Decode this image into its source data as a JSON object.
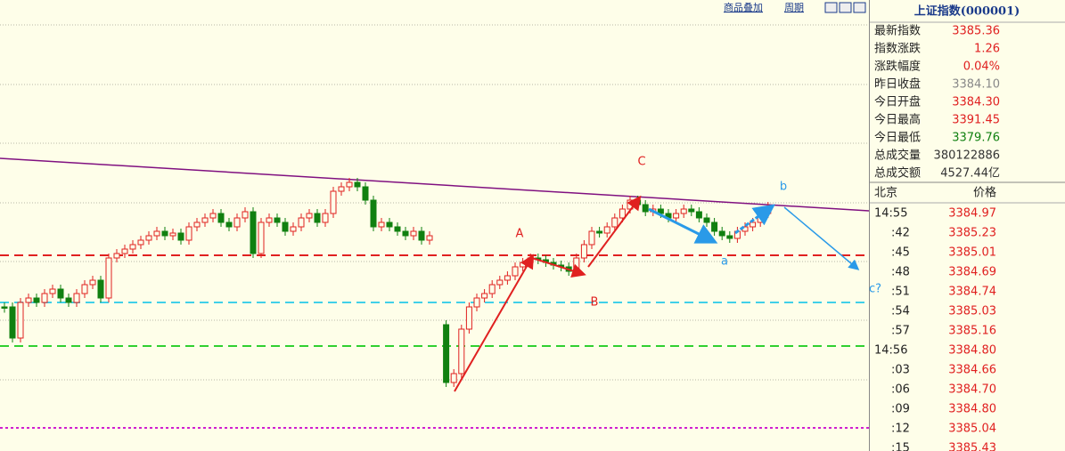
{
  "toolbar": {
    "overlay": "商品叠加",
    "period": "周期"
  },
  "chart": {
    "labels": {
      "A": "A",
      "B": "B",
      "C": "C",
      "a": "a",
      "b": "b",
      "c": "c?"
    }
  },
  "quote": {
    "title": "上证指数(000001)",
    "rows": [
      [
        "最新指数",
        "3385.36"
      ],
      [
        "指数涨跌",
        "1.26"
      ],
      [
        "涨跌幅度",
        "0.04%"
      ],
      [
        "昨日收盘",
        "3384.10"
      ],
      [
        "今日开盘",
        "3384.30"
      ],
      [
        "今日最高",
        "3391.45"
      ],
      [
        "今日最低",
        "3379.76"
      ],
      [
        "总成交量",
        "380122886"
      ],
      [
        "总成交额",
        "4527.44亿"
      ]
    ]
  },
  "ticks": {
    "header": [
      "北京",
      "价格"
    ],
    "rows": [
      [
        "14:55",
        "3384.97"
      ],
      [
        ":42",
        "3385.23"
      ],
      [
        ":45",
        "3385.01"
      ],
      [
        ":48",
        "3384.69"
      ],
      [
        ":51",
        "3384.74"
      ],
      [
        ":54",
        "3385.03"
      ],
      [
        ":57",
        "3385.16"
      ],
      [
        "14:56",
        "3384.80"
      ],
      [
        ":03",
        "3384.66"
      ],
      [
        ":06",
        "3384.70"
      ],
      [
        ":09",
        "3384.80"
      ],
      [
        ":12",
        "3385.04"
      ],
      [
        ":15",
        "3385.43"
      ]
    ]
  }
}
